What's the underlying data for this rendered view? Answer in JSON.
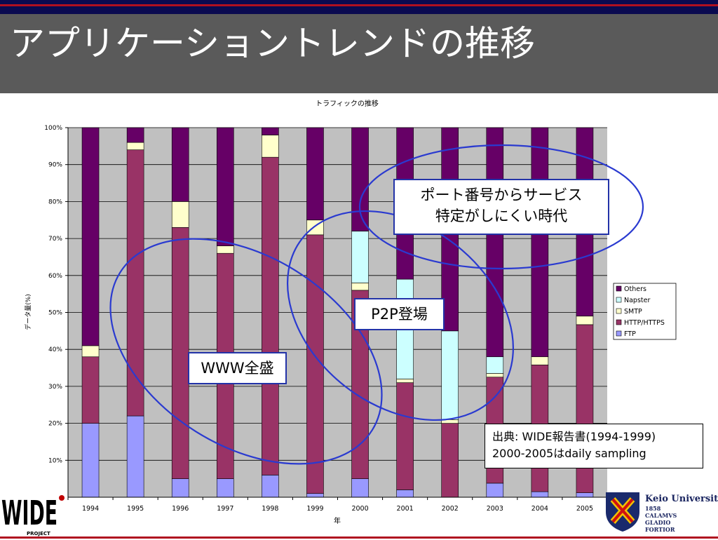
{
  "slide": {
    "title": "アプリケーショントレンドの推移"
  },
  "callouts": {
    "port_line1": "ポート番号からサービス",
    "port_line2": "特定がしにくい時代",
    "p2p": "P2P登場",
    "www": "WWW全盛",
    "source_line1": "出典: WIDE報告書(1994-1999)",
    "source_line2": "2000-2005はdaily sampling"
  },
  "logos": {
    "wide_text": "WIDE",
    "wide_sub": "PROJECT",
    "keio_name": "Keio University",
    "keio_year": "1858",
    "keio_motto": [
      "CALAMVS",
      "GLADIO",
      "FORTIOR"
    ]
  },
  "colors": {
    "Others": "#660066",
    "Napster": "#ccffff",
    "SMTP": "#ffffcc",
    "HTTP/HTTPS": "#993366",
    "FTP": "#9999ff",
    "plot_bg": "#c0c0c0",
    "ellipse": "#2a3ad0"
  },
  "chart_data": {
    "type": "bar",
    "stacked": true,
    "title": "トラフィックの推移",
    "xlabel": "年",
    "ylabel": "データ量(%)",
    "ylim": [
      0,
      100
    ],
    "yticks": [
      "10%",
      "20%",
      "30%",
      "40%",
      "50%",
      "60%",
      "70%",
      "80%",
      "90%",
      "100%"
    ],
    "grid": true,
    "legend_position": "right",
    "categories": [
      "1994",
      "1995",
      "1996",
      "1997",
      "1998",
      "1999",
      "2000",
      "2001",
      "2002",
      "2003",
      "2004",
      "2005"
    ],
    "series": [
      {
        "name": "FTP",
        "values": [
          20,
          22,
          5,
          5,
          6,
          1,
          5,
          2,
          0,
          3.8,
          1.5,
          1.2
        ]
      },
      {
        "name": "HTTP/HTTPS",
        "values": [
          18,
          72,
          68,
          61,
          86,
          70,
          51,
          29,
          20,
          28.7,
          34.3,
          45.5
        ]
      },
      {
        "name": "SMTP",
        "values": [
          3,
          2,
          7,
          2,
          6,
          4,
          2,
          1,
          1,
          1,
          2.2,
          2.3
        ]
      },
      {
        "name": "Napster",
        "values": [
          0,
          0,
          0,
          0,
          0,
          0,
          14,
          27,
          24,
          4.5,
          0,
          0
        ]
      },
      {
        "name": "Others",
        "values": [
          59,
          4,
          20,
          32,
          2,
          25,
          28,
          41,
          55,
          62,
          62,
          51
        ]
      }
    ]
  }
}
